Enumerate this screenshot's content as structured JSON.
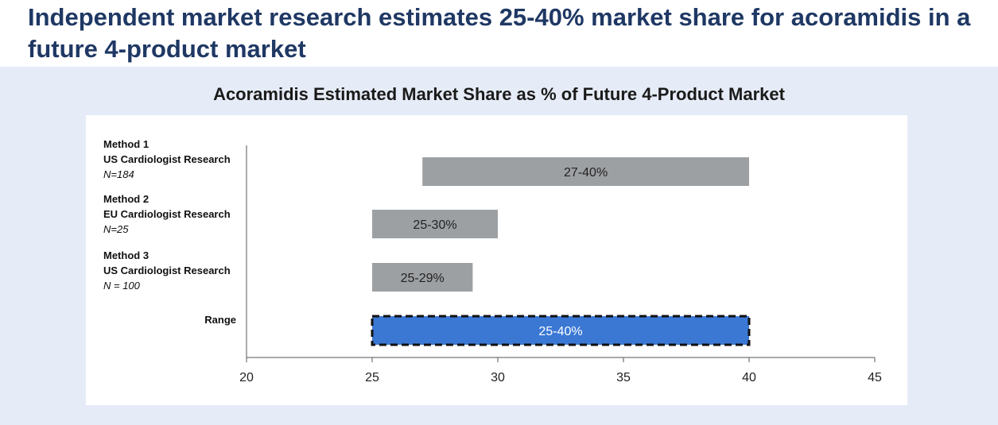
{
  "headline": "Independent market research estimates 25-40% market share for acoramidis in a future 4-product market",
  "chart_data": {
    "type": "bar",
    "orientation": "horizontal-floating",
    "title": "Acoramidis Estimated Market Share as % of Future 4-Product Market",
    "xlim": [
      20,
      45
    ],
    "xticks": [
      "20",
      "25",
      "30",
      "35",
      "40",
      "45"
    ],
    "grid": false,
    "rows": [
      {
        "line1": "Method 1",
        "line2": "US Cardiologist Research",
        "line3": "N=184",
        "start": 27,
        "end": 40,
        "label": "27-40%",
        "color": "#9da0a3"
      },
      {
        "line1": "Method 2",
        "line2": "EU Cardiologist Research",
        "line3": "N=25",
        "start": 25,
        "end": 30,
        "label": "25-30%",
        "color": "#9da0a3"
      },
      {
        "line1": "Method 3",
        "line2": "US Cardiologist Research",
        "line3": "N = 100",
        "start": 25,
        "end": 29,
        "label": "25-29%",
        "color": "#9da0a3"
      },
      {
        "line1": "Range",
        "start": 25,
        "end": 40,
        "label": "25-40%",
        "color": "#3a78d4",
        "dashed_border": true
      }
    ]
  },
  "colors": {
    "headline": "#1f3864",
    "band": "#e6ecf7",
    "bar_grey": "#9da0a3",
    "bar_blue": "#3a78d4"
  }
}
